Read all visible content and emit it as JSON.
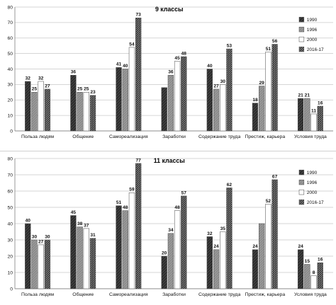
{
  "chart_data": [
    {
      "type": "bar",
      "title": "9 классы",
      "xlabel": "",
      "ylabel": "",
      "ylim": [
        0,
        80
      ],
      "yticks": [
        0,
        10,
        20,
        30,
        40,
        50,
        60,
        70,
        80
      ],
      "grid": true,
      "legend_position": "right",
      "categories": [
        "Польза людям",
        "Общение",
        "Самореализация",
        "Заработки",
        "Содержание труда",
        "Престиж, карьера",
        "Условия труда"
      ],
      "series": [
        {
          "name": "1990",
          "values": [
            32,
            36,
            41,
            28,
            40,
            18,
            21
          ],
          "labels": [
            "32",
            "36",
            "41",
            "",
            "40",
            "18",
            "21"
          ],
          "fill": "#3f3f3f",
          "pattern": "dark-diagonal"
        },
        {
          "name": "1996",
          "values": [
            25,
            25,
            40,
            36,
            27,
            29,
            21
          ],
          "labels": [
            "25",
            "25",
            "40",
            "36",
            "27",
            "29",
            "21"
          ],
          "fill": "#9b9b9b",
          "pattern": "light-diagonal"
        },
        {
          "name": "2000",
          "values": [
            32,
            25,
            54,
            45,
            30,
            51,
            11
          ],
          "labels": [
            "32",
            "25",
            "54",
            "45",
            "30",
            "51",
            "11"
          ],
          "fill": "#ffffff",
          "pattern": "white"
        },
        {
          "name": "2016-17",
          "values": [
            27,
            23,
            73,
            48,
            53,
            56,
            16
          ],
          "labels": [
            "27",
            "23",
            "73",
            "48",
            "53",
            "56",
            "16"
          ],
          "fill": "#5a5a5a",
          "pattern": "dark-texture"
        }
      ]
    },
    {
      "type": "bar",
      "title": "11 классы",
      "xlabel": "",
      "ylabel": "",
      "ylim": [
        0,
        80
      ],
      "yticks": [
        0,
        10,
        20,
        30,
        40,
        50,
        60,
        70,
        80
      ],
      "grid": true,
      "legend_position": "right",
      "categories": [
        "Польза людям",
        "Общение",
        "Самореализация",
        "Заработки",
        "Содержание труда",
        "Престиж, карьера",
        "Условия труда"
      ],
      "series": [
        {
          "name": "1990",
          "values": [
            40,
            45,
            51,
            20,
            32,
            24,
            24
          ],
          "labels": [
            "40",
            "45",
            "51",
            "20",
            "32",
            "24",
            "24"
          ],
          "fill": "#3f3f3f",
          "pattern": "dark-diagonal"
        },
        {
          "name": "1996",
          "values": [
            30,
            38,
            48,
            34,
            24,
            40,
            15
          ],
          "labels": [
            "30",
            "38",
            "48",
            "34",
            "24",
            "",
            "15"
          ],
          "fill": "#9b9b9b",
          "pattern": "light-diagonal"
        },
        {
          "name": "2000",
          "values": [
            27,
            37,
            59,
            48,
            35,
            52,
            8
          ],
          "labels": [
            "27",
            "37",
            "59",
            "48",
            "35",
            "52",
            "8"
          ],
          "fill": "#ffffff",
          "pattern": "white"
        },
        {
          "name": "2016-17",
          "values": [
            30,
            31,
            77,
            57,
            62,
            67,
            16
          ],
          "labels": [
            "30",
            "31",
            "77",
            "57",
            "62",
            "67",
            "16"
          ],
          "fill": "#5a5a5a",
          "pattern": "dark-texture"
        }
      ]
    }
  ]
}
